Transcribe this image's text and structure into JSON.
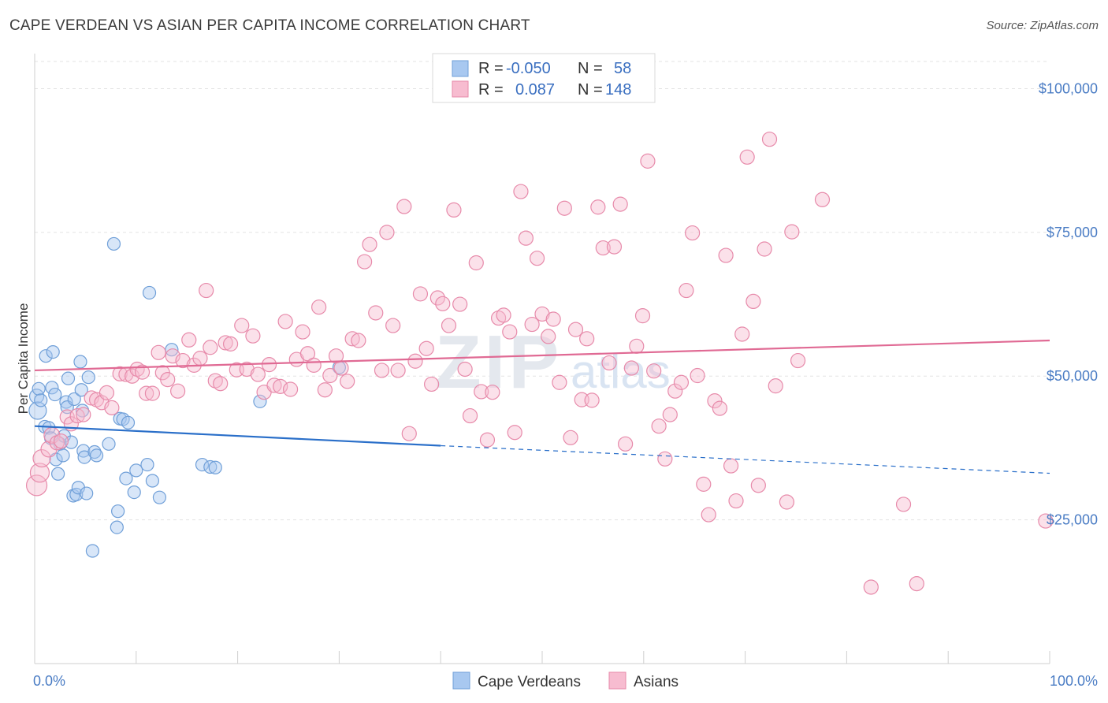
{
  "header": {
    "title": "CAPE VERDEAN VS ASIAN PER CAPITA INCOME CORRELATION CHART",
    "source": "Source: ZipAtlas.com"
  },
  "watermark": {
    "zip": "ZIP",
    "atlas": "atlas"
  },
  "legend_top": [
    {
      "r_label": "R =",
      "r_value": "-0.050",
      "n_label": "N =",
      "n_value": "58",
      "color": "#a8c8f0",
      "stroke": "#6f9fd8"
    },
    {
      "r_label": "R =",
      "r_value": " 0.087",
      "n_label": "N =",
      "n_value": "148",
      "color": "#f7bcd0",
      "stroke": "#e78aaa"
    }
  ],
  "legend_bottom": [
    {
      "label": "Cape Verdeans",
      "color": "#a8c8f0",
      "stroke": "#6f9fd8"
    },
    {
      "label": "Asians",
      "color": "#f7bcd0",
      "stroke": "#e78aaa"
    }
  ],
  "chart_data": {
    "type": "scatter",
    "title": "CAPE VERDEAN VS ASIAN PER CAPITA INCOME CORRELATION CHART",
    "xlabel": "",
    "ylabel": "Per Capita Income",
    "xlim": [
      0,
      100
    ],
    "ylim": [
      0,
      105000
    ],
    "x_tick_labels": [
      "0.0%",
      "100.0%"
    ],
    "y_ticks": [
      {
        "value": 25000,
        "label": "$25,000"
      },
      {
        "value": 50000,
        "label": "$50,000"
      },
      {
        "value": 75000,
        "label": "$75,000"
      },
      {
        "value": 100000,
        "label": "$100,000"
      }
    ],
    "grid": true,
    "series": [
      {
        "name": "Cape Verdeans",
        "color": "#a8c8f0",
        "stroke": "#6f9fd8",
        "trend": {
          "x0": 0,
          "y0": 41300,
          "x1": 40,
          "y1": 37900,
          "dash_to_x": 100,
          "dash_to_y": 33100,
          "color": "#2a6fc9"
        },
        "points": [
          [
            0.2,
            46500,
            9
          ],
          [
            0.3,
            44000,
            11
          ],
          [
            0.4,
            47800,
            8
          ],
          [
            0.6,
            45800,
            8
          ],
          [
            1.0,
            41200,
            8
          ],
          [
            1.1,
            53500,
            8
          ],
          [
            1.4,
            41000,
            8
          ],
          [
            1.6,
            39200,
            8
          ],
          [
            1.7,
            48000,
            8
          ],
          [
            1.8,
            54200,
            8
          ],
          [
            2.0,
            46800,
            8
          ],
          [
            2.1,
            35500,
            8
          ],
          [
            2.3,
            33000,
            8
          ],
          [
            2.5,
            38200,
            8
          ],
          [
            2.8,
            36200,
            8
          ],
          [
            2.9,
            39600,
            8
          ],
          [
            3.1,
            45500,
            8
          ],
          [
            3.2,
            44600,
            8
          ],
          [
            3.3,
            49600,
            8
          ],
          [
            3.6,
            38500,
            8
          ],
          [
            3.8,
            29200,
            8
          ],
          [
            3.9,
            46000,
            8
          ],
          [
            4.1,
            29400,
            8
          ],
          [
            4.3,
            30600,
            8
          ],
          [
            4.5,
            52500,
            8
          ],
          [
            4.6,
            47600,
            8
          ],
          [
            4.7,
            44000,
            8
          ],
          [
            4.8,
            37000,
            8
          ],
          [
            4.9,
            35900,
            8
          ],
          [
            5.1,
            29600,
            8
          ],
          [
            5.3,
            49800,
            8
          ],
          [
            5.7,
            19600,
            8
          ],
          [
            5.9,
            36800,
            8
          ],
          [
            6.1,
            36200,
            8
          ],
          [
            7.3,
            38200,
            8
          ],
          [
            7.8,
            73000,
            8
          ],
          [
            8.2,
            26500,
            8
          ],
          [
            8.1,
            23700,
            8
          ],
          [
            8.4,
            42600,
            8
          ],
          [
            8.7,
            42500,
            8
          ],
          [
            9.0,
            32200,
            8
          ],
          [
            9.2,
            41900,
            8
          ],
          [
            9.8,
            29800,
            8
          ],
          [
            10.0,
            33600,
            8
          ],
          [
            11.1,
            34600,
            8
          ],
          [
            11.6,
            31800,
            8
          ],
          [
            12.3,
            28900,
            8
          ],
          [
            11.3,
            64500,
            8
          ],
          [
            13.5,
            54600,
            8
          ],
          [
            16.5,
            34600,
            8
          ],
          [
            17.3,
            34200,
            8
          ],
          [
            17.8,
            34100,
            8
          ],
          [
            22.2,
            45600,
            8
          ],
          [
            30.0,
            51500,
            8
          ]
        ]
      },
      {
        "name": "Asians",
        "color": "#f7bcd0",
        "stroke": "#e78aaa",
        "trend": {
          "x0": 0,
          "y0": 51000,
          "x1": 100,
          "y1": 56200,
          "color": "#e06a94"
        },
        "points": [
          [
            0.2,
            31000,
            13
          ],
          [
            0.5,
            33200,
            12
          ],
          [
            0.7,
            35700,
            11
          ],
          [
            1.4,
            37300,
            10
          ],
          [
            1.7,
            39700,
            10
          ],
          [
            2.2,
            38400,
            9
          ],
          [
            2.6,
            38700,
            9
          ],
          [
            3.2,
            42900,
            9
          ],
          [
            3.6,
            41700,
            9
          ],
          [
            4.2,
            43100,
            9
          ],
          [
            4.8,
            43300,
            9
          ],
          [
            5.6,
            46200,
            9
          ],
          [
            6.1,
            45900,
            9
          ],
          [
            6.6,
            45400,
            9
          ],
          [
            7.1,
            47100,
            9
          ],
          [
            7.6,
            44500,
            9
          ],
          [
            8.4,
            50400,
            9
          ],
          [
            9.0,
            50300,
            9
          ],
          [
            9.6,
            50000,
            9
          ],
          [
            10.1,
            51200,
            9
          ],
          [
            10.6,
            50700,
            9
          ],
          [
            11.0,
            47000,
            9
          ],
          [
            11.6,
            47000,
            9
          ],
          [
            12.2,
            54100,
            9
          ],
          [
            12.6,
            50600,
            9
          ],
          [
            13.1,
            49400,
            9
          ],
          [
            13.6,
            53500,
            9
          ],
          [
            14.1,
            47400,
            9
          ],
          [
            14.6,
            52700,
            9
          ],
          [
            15.2,
            56300,
            9
          ],
          [
            15.7,
            51900,
            9
          ],
          [
            16.3,
            53100,
            9
          ],
          [
            16.9,
            64900,
            9
          ],
          [
            17.3,
            55000,
            9
          ],
          [
            17.8,
            49200,
            9
          ],
          [
            18.3,
            48700,
            9
          ],
          [
            18.8,
            55800,
            9
          ],
          [
            19.3,
            55600,
            9
          ],
          [
            19.9,
            51100,
            9
          ],
          [
            20.4,
            58800,
            9
          ],
          [
            20.9,
            51200,
            9
          ],
          [
            21.5,
            57000,
            9
          ],
          [
            22.0,
            50300,
            9
          ],
          [
            22.6,
            47200,
            9
          ],
          [
            23.1,
            52000,
            9
          ],
          [
            23.6,
            48400,
            9
          ],
          [
            24.2,
            48200,
            9
          ],
          [
            24.7,
            59500,
            9
          ],
          [
            25.2,
            47700,
            9
          ],
          [
            25.8,
            52900,
            9
          ],
          [
            26.4,
            57700,
            9
          ],
          [
            26.9,
            53900,
            9
          ],
          [
            27.5,
            51900,
            9
          ],
          [
            28.0,
            62000,
            9
          ],
          [
            28.6,
            47600,
            9
          ],
          [
            29.1,
            50100,
            9
          ],
          [
            29.7,
            53500,
            9
          ],
          [
            30.2,
            51400,
            9
          ],
          [
            30.8,
            49100,
            9
          ],
          [
            31.3,
            56500,
            9
          ],
          [
            31.9,
            56200,
            9
          ],
          [
            32.5,
            69900,
            9
          ],
          [
            33.0,
            72900,
            9
          ],
          [
            33.6,
            61000,
            9
          ],
          [
            34.2,
            51000,
            9
          ],
          [
            34.7,
            75000,
            9
          ],
          [
            35.3,
            58800,
            9
          ],
          [
            35.8,
            51000,
            9
          ],
          [
            36.4,
            79500,
            9
          ],
          [
            36.9,
            40000,
            9
          ],
          [
            37.5,
            52600,
            9
          ],
          [
            38.0,
            64300,
            9
          ],
          [
            38.6,
            54800,
            9
          ],
          [
            39.1,
            48600,
            9
          ],
          [
            39.7,
            63600,
            9
          ],
          [
            40.2,
            62600,
            9
          ],
          [
            40.8,
            58800,
            9
          ],
          [
            41.3,
            78900,
            9
          ],
          [
            41.9,
            62500,
            9
          ],
          [
            42.4,
            51200,
            9
          ],
          [
            42.9,
            43100,
            9
          ],
          [
            43.5,
            69700,
            9
          ],
          [
            44.0,
            47300,
            9
          ],
          [
            44.6,
            38900,
            9
          ],
          [
            45.1,
            47200,
            9
          ],
          [
            45.7,
            60100,
            9
          ],
          [
            46.2,
            60600,
            9
          ],
          [
            46.8,
            57700,
            9
          ],
          [
            47.3,
            40200,
            9
          ],
          [
            47.9,
            82100,
            9
          ],
          [
            48.4,
            74000,
            9
          ],
          [
            49.0,
            59000,
            9
          ],
          [
            49.5,
            70500,
            9
          ],
          [
            50.0,
            60800,
            9
          ],
          [
            50.6,
            56900,
            9
          ],
          [
            51.1,
            59900,
            9
          ],
          [
            51.7,
            48900,
            9
          ],
          [
            52.2,
            79200,
            9
          ],
          [
            52.8,
            39300,
            9
          ],
          [
            53.3,
            58100,
            9
          ],
          [
            53.9,
            45900,
            9
          ],
          [
            54.4,
            56500,
            9
          ],
          [
            54.9,
            45800,
            9
          ],
          [
            55.5,
            79400,
            9
          ],
          [
            56.0,
            72300,
            9
          ],
          [
            56.6,
            52300,
            9
          ],
          [
            57.1,
            72500,
            9
          ],
          [
            57.7,
            79900,
            9
          ],
          [
            58.2,
            38200,
            9
          ],
          [
            58.8,
            51400,
            9
          ],
          [
            59.3,
            55200,
            9
          ],
          [
            59.9,
            60500,
            9
          ],
          [
            60.4,
            87400,
            9
          ],
          [
            61.0,
            50900,
            9
          ],
          [
            61.5,
            41300,
            9
          ],
          [
            62.1,
            35600,
            9
          ],
          [
            62.6,
            43300,
            9
          ],
          [
            63.1,
            47400,
            9
          ],
          [
            63.7,
            48900,
            9
          ],
          [
            64.2,
            64900,
            9
          ],
          [
            64.8,
            74900,
            9
          ],
          [
            65.3,
            50100,
            9
          ],
          [
            65.9,
            31200,
            9
          ],
          [
            66.4,
            25900,
            9
          ],
          [
            67.0,
            45700,
            9
          ],
          [
            67.5,
            44400,
            9
          ],
          [
            68.1,
            71000,
            9
          ],
          [
            68.6,
            34400,
            9
          ],
          [
            69.1,
            28300,
            9
          ],
          [
            69.7,
            57300,
            9
          ],
          [
            70.2,
            88100,
            9
          ],
          [
            70.8,
            63000,
            9
          ],
          [
            71.3,
            31000,
            9
          ],
          [
            71.9,
            72100,
            9
          ],
          [
            72.4,
            91200,
            9
          ],
          [
            73.0,
            48300,
            9
          ],
          [
            74.1,
            28100,
            9
          ],
          [
            74.6,
            75100,
            9
          ],
          [
            75.2,
            52700,
            9
          ],
          [
            77.6,
            80700,
            9
          ],
          [
            82.4,
            13300,
            9
          ],
          [
            85.6,
            27700,
            9
          ],
          [
            86.9,
            13900,
            9
          ],
          [
            99.6,
            24800,
            9
          ]
        ]
      }
    ]
  }
}
